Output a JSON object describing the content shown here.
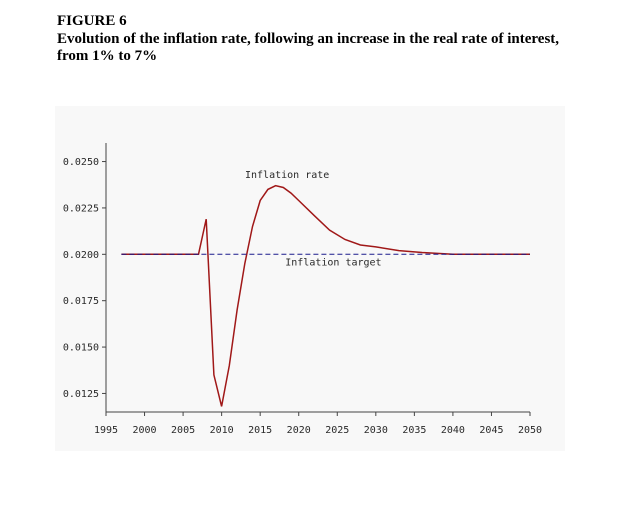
{
  "figure": {
    "label": "FIGURE 6",
    "title_line1": "Evolution of the inflation rate, following an increase in the real rate of interest,",
    "title_line2": "from 1% to 7%"
  },
  "chart_data": {
    "type": "line",
    "title": "",
    "xlabel": "",
    "ylabel": "",
    "xlim": [
      1995,
      2050
    ],
    "ylim": [
      0.0115,
      0.026
    ],
    "x_ticks": [
      "1995",
      "2000",
      "2005",
      "2010",
      "2015",
      "2020",
      "2025",
      "2030",
      "2035",
      "2040",
      "2045",
      "2050"
    ],
    "y_ticks": [
      "0.0250",
      "0.0225",
      "0.0200",
      "0.0175",
      "0.0150",
      "0.0125"
    ],
    "grid": false,
    "annotations": [
      {
        "text": "Inflation rate",
        "x": 2018.5,
        "y": 0.0241
      },
      {
        "text": "Inflation target",
        "x": 2024.5,
        "y": 0.0194
      }
    ],
    "series": [
      {
        "name": "Inflation rate",
        "color": "#a01818",
        "style": "solid",
        "x": [
          1997,
          2007,
          2008,
          2009,
          2010,
          2011,
          2012,
          2013,
          2014,
          2015,
          2016,
          2017,
          2018,
          2019,
          2020,
          2022,
          2024,
          2026,
          2028,
          2030,
          2033,
          2036,
          2040,
          2045,
          2050
        ],
        "y": [
          0.02,
          0.02,
          0.0219,
          0.0135,
          0.0118,
          0.014,
          0.017,
          0.0195,
          0.0215,
          0.0229,
          0.0235,
          0.0237,
          0.0236,
          0.0233,
          0.0229,
          0.0221,
          0.0213,
          0.0208,
          0.0205,
          0.0204,
          0.0202,
          0.0201,
          0.02,
          0.02,
          0.02
        ]
      },
      {
        "name": "Inflation target",
        "color": "#1a1a8c",
        "style": "dashed",
        "x": [
          1997,
          2050
        ],
        "y": [
          0.02,
          0.02
        ]
      }
    ]
  }
}
